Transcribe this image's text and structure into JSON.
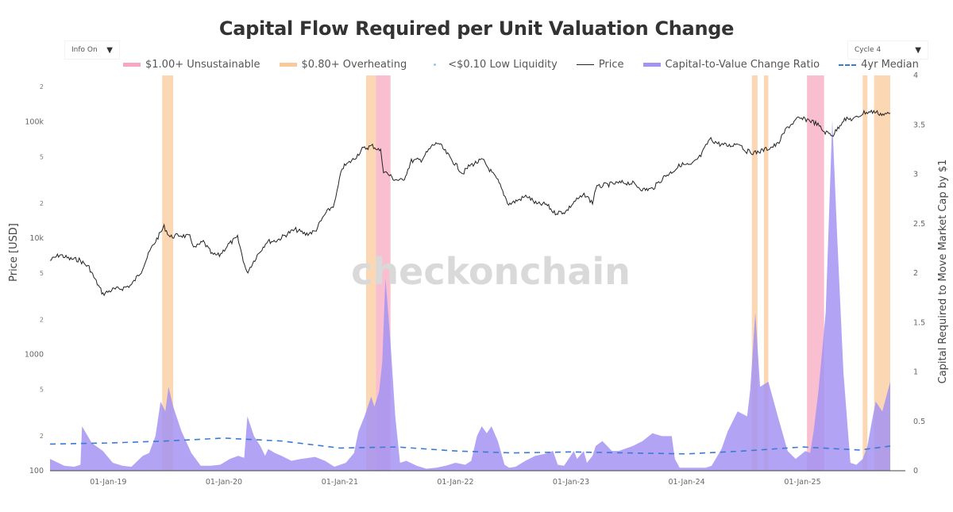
{
  "title": "Capital Flow Required per Unit Valuation Change",
  "controls": {
    "info_dropdown": {
      "value": "Info On",
      "arrow": "▼"
    },
    "cycle_dropdown": {
      "value": "Cycle 4",
      "arrow": "▼"
    }
  },
  "watermark": "checkonchain",
  "legend": [
    {
      "label": "$1.00+ Unsustainable",
      "kind": "band",
      "color": "#f7a8c0"
    },
    {
      "label": "$0.80+ Overheating",
      "kind": "band",
      "color": "#f9c99a"
    },
    {
      "label": "<$0.10 Low Liquidity",
      "kind": "dot",
      "color": "#9ec3f0"
    },
    {
      "label": "Price",
      "kind": "line",
      "color": "#222222"
    },
    {
      "label": "Capital-to-Value Change Ratio",
      "kind": "area",
      "color": "#a593f2"
    },
    {
      "label": "4yr Median",
      "kind": "dash",
      "color": "#3a7bd5"
    }
  ],
  "chart_data": {
    "type": "line",
    "title": "Capital Flow Required per Unit Valuation Change",
    "xlabel": "",
    "ylabel": "Price [USD]",
    "y2label": "Capital Required to Move Market Cap by $1",
    "x_range": [
      "2018-07-01",
      "2025-10-15"
    ],
    "x_ticks": [
      "01-Jan-19",
      "01-Jan-20",
      "01-Jan-21",
      "01-Jan-22",
      "01-Jan-23",
      "01-Jan-24",
      "01-Jan-25"
    ],
    "y_scale": "log",
    "y_range": [
      100,
      250000
    ],
    "y_ticks": [
      {
        "value": 100,
        "label": "100"
      },
      {
        "value": 200,
        "label": "2"
      },
      {
        "value": 500,
        "label": "5"
      },
      {
        "value": 1000,
        "label": "1000"
      },
      {
        "value": 2000,
        "label": "2"
      },
      {
        "value": 5000,
        "label": "5"
      },
      {
        "value": 10000,
        "label": "10k"
      },
      {
        "value": 20000,
        "label": "2"
      },
      {
        "value": 50000,
        "label": "5"
      },
      {
        "value": 100000,
        "label": "100k"
      },
      {
        "value": 200000,
        "label": "2"
      }
    ],
    "y2_range": [
      0,
      4
    ],
    "y2_ticks": [
      0,
      0.5,
      1,
      1.5,
      2,
      2.5,
      3,
      3.5,
      4
    ],
    "grid": false,
    "legend_position": "top",
    "series": [
      {
        "name": "Price",
        "axis": "y",
        "x": [
          "2018-07-01",
          "2018-08-01",
          "2018-09-01",
          "2018-10-01",
          "2018-11-01",
          "2018-11-20",
          "2018-12-15",
          "2019-01-15",
          "2019-02-15",
          "2019-03-15",
          "2019-04-15",
          "2019-05-15",
          "2019-06-26",
          "2019-07-15",
          "2019-08-15",
          "2019-09-15",
          "2019-10-01",
          "2019-10-28",
          "2019-11-25",
          "2019-12-18",
          "2020-01-15",
          "2020-02-13",
          "2020-03-13",
          "2020-04-15",
          "2020-05-15",
          "2020-06-15",
          "2020-07-27",
          "2020-08-15",
          "2020-09-15",
          "2020-10-15",
          "2020-11-15",
          "2020-12-15",
          "2021-01-08",
          "2021-02-15",
          "2021-03-13",
          "2021-04-14",
          "2021-05-10",
          "2021-05-19",
          "2021-06-22",
          "2021-07-20",
          "2021-08-15",
          "2021-09-15",
          "2021-10-20",
          "2021-11-08",
          "2021-12-15",
          "2022-01-24",
          "2022-02-15",
          "2022-03-28",
          "2022-04-15",
          "2022-05-15",
          "2022-06-18",
          "2022-07-15",
          "2022-08-15",
          "2022-09-15",
          "2022-10-15",
          "2022-11-09",
          "2022-12-15",
          "2023-01-15",
          "2023-02-15",
          "2023-03-10",
          "2023-03-20",
          "2023-04-15",
          "2023-06-15",
          "2023-07-15",
          "2023-08-17",
          "2023-09-15",
          "2023-10-24",
          "2023-11-15",
          "2023-12-15",
          "2024-01-15",
          "2024-02-15",
          "2024-03-14",
          "2024-04-15",
          "2024-05-15",
          "2024-06-15",
          "2024-07-05",
          "2024-08-05",
          "2024-09-15",
          "2024-10-15",
          "2024-11-12",
          "2024-12-17",
          "2025-01-20",
          "2025-02-15",
          "2025-03-10",
          "2025-04-08",
          "2025-05-10",
          "2025-06-15",
          "2025-07-14",
          "2025-08-14",
          "2025-09-15",
          "2025-10-05"
        ],
        "values": [
          6400,
          7200,
          6600,
          6500,
          5600,
          4400,
          3300,
          3600,
          3700,
          3950,
          5200,
          8000,
          12500,
          10200,
          10600,
          10200,
          8200,
          9300,
          7200,
          7100,
          8800,
          10100,
          5000,
          7100,
          9300,
          9500,
          11200,
          11800,
          10800,
          11400,
          16000,
          19500,
          40000,
          48000,
          58000,
          62000,
          56000,
          38000,
          32000,
          31000,
          46000,
          47000,
          62000,
          66000,
          49000,
          36000,
          42000,
          47000,
          40000,
          31000,
          19500,
          21000,
          23000,
          19500,
          19500,
          16500,
          16800,
          21000,
          23500,
          20000,
          27000,
          28500,
          30000,
          29500,
          26000,
          26500,
          34000,
          37000,
          43000,
          42000,
          51000,
          71000,
          64000,
          62000,
          66000,
          56000,
          54000,
          59000,
          64000,
          88000,
          106000,
          104000,
          96000,
          82000,
          77000,
          104000,
          106000,
          120000,
          122000,
          115000,
          118000
        ]
      },
      {
        "name": "Capital-to-Value Change Ratio",
        "axis": "y2",
        "x": [
          "2018-07-01",
          "2018-08-15",
          "2018-09-15",
          "2018-10-05",
          "2018-10-10",
          "2018-11-10",
          "2018-12-15",
          "2019-01-15",
          "2019-02-15",
          "2019-03-15",
          "2019-03-28",
          "2019-04-20",
          "2019-05-10",
          "2019-05-30",
          "2019-06-15",
          "2019-06-30",
          "2019-07-10",
          "2019-07-25",
          "2019-08-20",
          "2019-09-20",
          "2019-10-20",
          "2019-11-20",
          "2019-12-20",
          "2020-01-20",
          "2020-02-15",
          "2020-03-05",
          "2020-03-15",
          "2020-04-05",
          "2020-04-25",
          "2020-05-10",
          "2020-05-20",
          "2020-06-10",
          "2020-07-01",
          "2020-08-01",
          "2020-09-01",
          "2020-10-15",
          "2020-11-15",
          "2020-12-15",
          "2021-01-20",
          "2021-02-15",
          "2021-03-01",
          "2021-03-20",
          "2021-04-10",
          "2021-04-20",
          "2021-05-05",
          "2021-05-15",
          "2021-05-25",
          "2021-06-10",
          "2021-06-25",
          "2021-07-10",
          "2021-07-30",
          "2021-09-01",
          "2021-10-01",
          "2021-11-01",
          "2021-12-01",
          "2022-01-01",
          "2022-02-01",
          "2022-02-20",
          "2022-03-10",
          "2022-03-25",
          "2022-04-10",
          "2022-04-25",
          "2022-05-15",
          "2022-06-05",
          "2022-06-20",
          "2022-07-10",
          "2022-08-10",
          "2022-09-10",
          "2022-10-10",
          "2022-11-05",
          "2022-11-20",
          "2022-12-10",
          "2023-01-10",
          "2023-01-20",
          "2023-02-10",
          "2023-02-20",
          "2023-03-10",
          "2023-03-20",
          "2023-04-10",
          "2023-05-10",
          "2023-06-01",
          "2023-07-15",
          "2023-08-15",
          "2023-09-15",
          "2023-10-15",
          "2023-11-15",
          "2023-11-25",
          "2023-12-10",
          "2024-01-10",
          "2024-02-01",
          "2024-03-01",
          "2024-03-20",
          "2024-04-20",
          "2024-05-10",
          "2024-06-10",
          "2024-07-10",
          "2024-07-20",
          "2024-08-05",
          "2024-08-20",
          "2024-09-15",
          "2024-10-15",
          "2024-11-15",
          "2024-12-10",
          "2025-01-10",
          "2025-01-25",
          "2025-02-05",
          "2025-02-20",
          "2025-03-15",
          "2025-04-05",
          "2025-04-20",
          "2025-05-10",
          "2025-06-01",
          "2025-06-20",
          "2025-07-10",
          "2025-07-25",
          "2025-08-05",
          "2025-08-20",
          "2025-09-10",
          "2025-10-05"
        ],
        "values": [
          0.12,
          0.05,
          0.04,
          0.06,
          0.45,
          0.28,
          0.2,
          0.08,
          0.05,
          0.04,
          0.08,
          0.15,
          0.18,
          0.35,
          0.7,
          0.6,
          0.85,
          0.65,
          0.4,
          0.18,
          0.05,
          0.05,
          0.06,
          0.12,
          0.15,
          0.13,
          0.55,
          0.35,
          0.25,
          0.15,
          0.22,
          0.18,
          0.15,
          0.1,
          0.12,
          0.14,
          0.1,
          0.04,
          0.08,
          0.18,
          0.4,
          0.55,
          0.75,
          0.65,
          0.8,
          1.1,
          1.95,
          1.3,
          0.55,
          0.08,
          0.1,
          0.05,
          0.02,
          0.03,
          0.05,
          0.08,
          0.06,
          0.1,
          0.35,
          0.45,
          0.38,
          0.45,
          0.3,
          0.06,
          0.03,
          0.04,
          0.1,
          0.15,
          0.17,
          0.2,
          0.06,
          0.05,
          0.2,
          0.12,
          0.2,
          0.08,
          0.15,
          0.25,
          0.3,
          0.2,
          0.2,
          0.25,
          0.3,
          0.38,
          0.35,
          0.35,
          0.12,
          0.03,
          0.03,
          0.03,
          0.03,
          0.05,
          0.22,
          0.4,
          0.6,
          0.55,
          0.82,
          1.6,
          0.85,
          0.9,
          0.55,
          0.2,
          0.12,
          0.2,
          0.18,
          0.4,
          0.8,
          1.6,
          3.55,
          2.4,
          1.0,
          0.08,
          0.06,
          0.12,
          0.25,
          0.45,
          0.7,
          0.6,
          0.9
        ]
      },
      {
        "name": "4yr Median",
        "axis": "y2",
        "x": [
          "2018-07-01",
          "2019-01-01",
          "2019-07-01",
          "2020-01-01",
          "2020-07-01",
          "2021-01-01",
          "2021-07-01",
          "2022-01-01",
          "2022-07-01",
          "2023-01-01",
          "2023-07-01",
          "2024-01-01",
          "2024-07-01",
          "2025-01-01",
          "2025-07-01",
          "2025-10-05"
        ],
        "values": [
          0.27,
          0.28,
          0.3,
          0.33,
          0.3,
          0.23,
          0.24,
          0.2,
          0.18,
          0.19,
          0.18,
          0.17,
          0.2,
          0.24,
          0.21,
          0.25
        ]
      }
    ],
    "highlight_bands": [
      {
        "type": "$0.80+ Overheating",
        "start": "2019-06-20",
        "end": "2019-07-25"
      },
      {
        "type": "$0.80+ Overheating",
        "start": "2021-03-25",
        "end": "2021-04-25"
      },
      {
        "type": "$1.00+ Unsustainable",
        "start": "2021-04-25",
        "end": "2021-06-10"
      },
      {
        "type": "$0.80+ Overheating",
        "start": "2024-07-25",
        "end": "2024-08-12"
      },
      {
        "type": "$0.80+ Overheating",
        "start": "2024-09-01",
        "end": "2024-09-15"
      },
      {
        "type": "$1.00+ Unsustainable",
        "start": "2025-01-15",
        "end": "2025-03-10"
      },
      {
        "type": "$0.80+ Overheating",
        "start": "2025-07-10",
        "end": "2025-07-25"
      },
      {
        "type": "$0.80+ Overheating",
        "start": "2025-08-15",
        "end": "2025-10-05"
      }
    ]
  }
}
